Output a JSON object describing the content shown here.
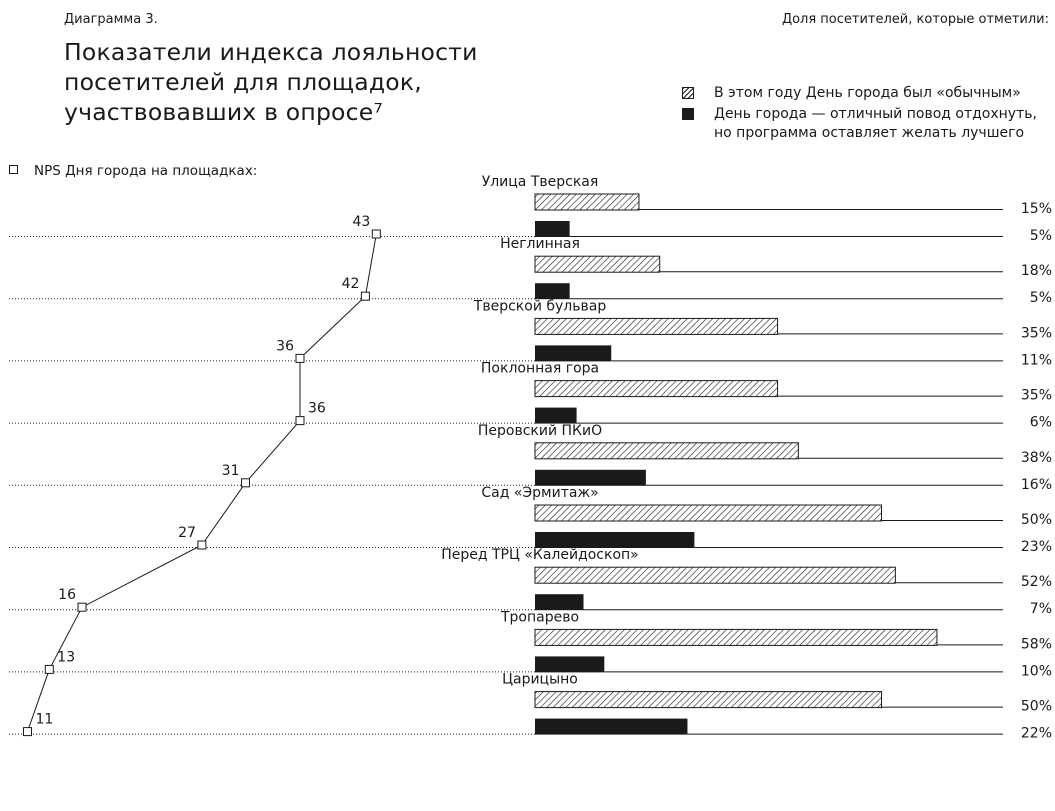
{
  "caption": "Диаграмма 3.",
  "title": "Показатели индекса лояльности посетителей для площадок, участвовавших в опросе⁷",
  "legend": {
    "header": "Доля посетителей, которые отметили:",
    "hatched_label": "В этом году День города был «обычным»",
    "solid_label": "День города — отличный повод отдохнуть, но программа оставляет желать лучшего"
  },
  "nps_label": "NPS Дня города на площадках:",
  "colors": {
    "ink": "#1a1a1a",
    "background": "#ffffff"
  },
  "chart_data": {
    "type": "bar",
    "orientation": "horizontal",
    "categories": [
      "Улица Тверская",
      "Неглинная",
      "Тверской бульвар",
      "Поклонная гора",
      "Перовский ПКиО",
      "Сад «Эрмитаж»",
      "Перед ТРЦ «Калейдоскоп»",
      "Тропарево",
      "Царицыно"
    ],
    "series": [
      {
        "name": "В этом году День города был «обычным»",
        "pattern": "hatched",
        "values": [
          15,
          18,
          35,
          35,
          38,
          50,
          52,
          58,
          50
        ],
        "labels": [
          "15%",
          "18%",
          "35%",
          "35%",
          "38%",
          "50%",
          "52%",
          "58%",
          "50%"
        ]
      },
      {
        "name": "День города — отличный повод отдохнуть, но программа оставляет желать лучшего",
        "pattern": "solid",
        "values": [
          5,
          5,
          11,
          6,
          16,
          23,
          7,
          10,
          22
        ],
        "labels": [
          "5%",
          "5%",
          "11%",
          "6%",
          "16%",
          "23%",
          "7%",
          "10%",
          "22%"
        ]
      }
    ],
    "nps": {
      "type": "line",
      "name": "NPS Дня города на площадках:",
      "values": [
        43,
        42,
        36,
        36,
        31,
        27,
        16,
        13,
        11
      ]
    },
    "grid": "dotted",
    "legend_position": "top-right"
  }
}
